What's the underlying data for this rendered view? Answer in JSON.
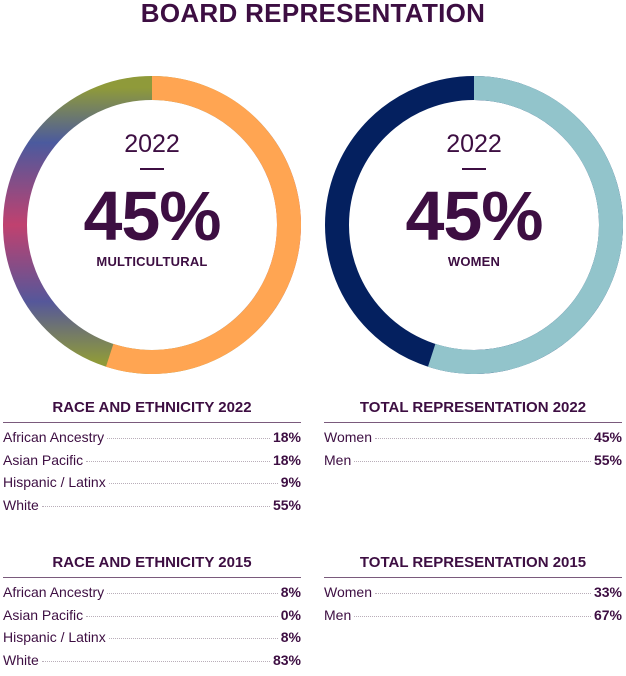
{
  "title": "BOARD REPRESENTATION",
  "colors": {
    "text": "#3d0e42",
    "multicultural_arc": "#ffa552",
    "women_arc": "#92c4cb",
    "men_arc": "#04205f"
  },
  "chart_data": [
    {
      "type": "pie",
      "year": "2022",
      "value": "45%",
      "label": "MULTICULTURAL",
      "segments": [
        {
          "name": "",
          "value": 45
        },
        {
          "name": "",
          "value": 55
        }
      ]
    },
    {
      "type": "pie",
      "year": "2022",
      "value": "45%",
      "label": "WOMEN",
      "segments": [
        {
          "name": "",
          "value": 45
        },
        {
          "name": "",
          "value": 55
        }
      ]
    }
  ],
  "tables": {
    "race_2022": {
      "title": "RACE AND ETHNICITY 2022",
      "rows": [
        {
          "label": "African Ancestry",
          "value": "18%"
        },
        {
          "label": "Asian Pacific",
          "value": "18%"
        },
        {
          "label": "Hispanic / Latinx",
          "value": "9%"
        },
        {
          "label": "White",
          "value": "55%"
        }
      ]
    },
    "total_2022": {
      "title": "TOTAL REPRESENTATION 2022",
      "rows": [
        {
          "label": "Women",
          "value": "45%"
        },
        {
          "label": "Men",
          "value": "55%"
        }
      ]
    },
    "race_2015": {
      "title": "RACE AND ETHNICITY 2015",
      "rows": [
        {
          "label": "African Ancestry",
          "value": "8%"
        },
        {
          "label": "Asian Pacific",
          "value": "0%"
        },
        {
          "label": "Hispanic / Latinx",
          "value": "8%"
        },
        {
          "label": "White",
          "value": "83%"
        }
      ]
    },
    "total_2015": {
      "title": "TOTAL REPRESENTATION 2015",
      "rows": [
        {
          "label": "Women",
          "value": "33%"
        },
        {
          "label": "Men",
          "value": "67%"
        }
      ]
    }
  }
}
